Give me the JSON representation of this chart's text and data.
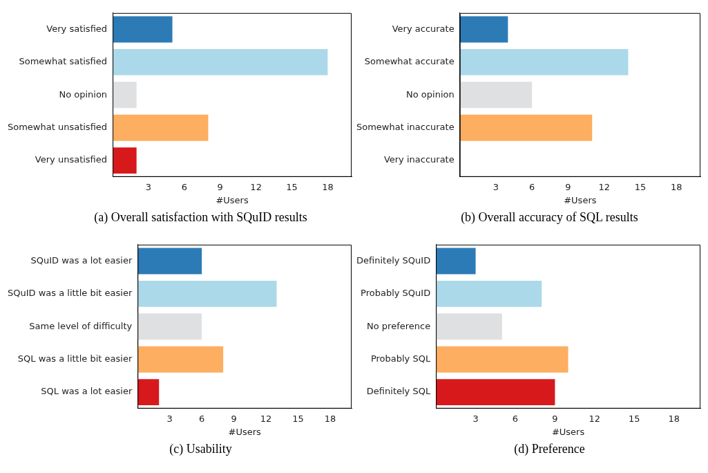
{
  "chart_data": [
    {
      "type": "bar",
      "orientation": "horizontal",
      "title": "(a) Overall satisfaction with SQuID results",
      "xlabel": "#Users",
      "categories": [
        "Very satisfied",
        "Somewhat satisfied",
        "No opinion",
        "Somewhat unsatisfied",
        "Very unsatisfied"
      ],
      "values": [
        5,
        18,
        2,
        8,
        2
      ],
      "colors": [
        "#2c7bb6",
        "#abd9e9",
        "#dfe0e2",
        "#fdae61",
        "#d7191c"
      ],
      "xlim": [
        0,
        20
      ],
      "xticks": [
        3,
        6,
        9,
        12,
        15,
        18
      ]
    },
    {
      "type": "bar",
      "orientation": "horizontal",
      "title": "(b) Overall accuracy of SQL results",
      "xlabel": "#Users",
      "categories": [
        "Very accurate",
        "Somewhat accurate",
        "No opinion",
        "Somewhat inaccurate",
        "Very inaccurate"
      ],
      "values": [
        4,
        14,
        6,
        11,
        0
      ],
      "colors": [
        "#2c7bb6",
        "#abd9e9",
        "#dfe0e2",
        "#fdae61",
        "#d7191c"
      ],
      "xlim": [
        0,
        20
      ],
      "xticks": [
        3,
        6,
        9,
        12,
        15,
        18
      ]
    },
    {
      "type": "bar",
      "orientation": "horizontal",
      "title": "(c) Usability",
      "xlabel": "#Users",
      "categories": [
        "SQuID was a lot easier",
        "SQuID was a little bit easier",
        "Same level of difficulty",
        "SQL was a little bit easier",
        "SQL was a lot easier"
      ],
      "values": [
        6,
        13,
        6,
        8,
        2
      ],
      "colors": [
        "#2c7bb6",
        "#abd9e9",
        "#dfe0e2",
        "#fdae61",
        "#d7191c"
      ],
      "xlim": [
        0,
        20
      ],
      "xticks": [
        3,
        6,
        9,
        12,
        15,
        18
      ]
    },
    {
      "type": "bar",
      "orientation": "horizontal",
      "title": "(d) Preference",
      "xlabel": "#Users",
      "categories": [
        "Definitely SQuID",
        "Probably SQuID",
        "No preference",
        "Probably SQL",
        "Definitely SQL"
      ],
      "values": [
        3,
        8,
        5,
        10,
        9
      ],
      "colors": [
        "#2c7bb6",
        "#abd9e9",
        "#dfe0e2",
        "#fdae61",
        "#d7191c"
      ],
      "xlim": [
        0,
        20
      ],
      "xticks": [
        3,
        6,
        9,
        12,
        15,
        18
      ]
    }
  ]
}
